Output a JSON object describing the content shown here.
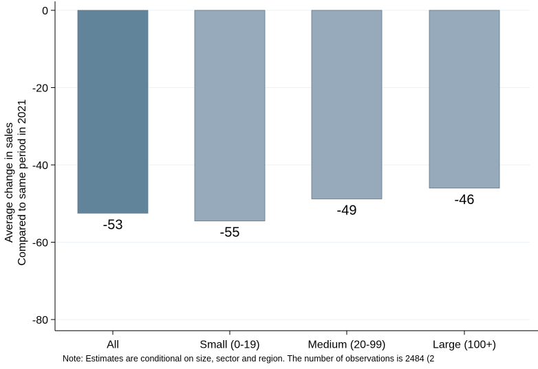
{
  "chart_data": {
    "type": "bar",
    "categories": [
      "All",
      "Small (0-19)",
      "Medium (20-99)",
      "Large (100+)"
    ],
    "values": [
      -52.5,
      -54.5,
      -48.8,
      -46.0
    ],
    "value_labels": [
      "-53",
      "-55",
      "-49",
      "-46"
    ],
    "bar_colors": [
      "#61849a",
      "#96aabb",
      "#96aabb",
      "#96aabb"
    ],
    "ylabel_line1": "Average change in sales",
    "ylabel_line2": "Compared to same period in 2021",
    "xlabel": "",
    "ylim": [
      -82,
      2
    ],
    "yticks": [
      0,
      -20,
      -40,
      -60,
      -80
    ],
    "ytick_labels": [
      "0",
      "-20",
      "-40",
      "-60",
      "-80"
    ],
    "grid": true,
    "legend": "none"
  },
  "note": "Note: Estimates are conditional on size, sector and region. The number of observations is 2484 (2"
}
